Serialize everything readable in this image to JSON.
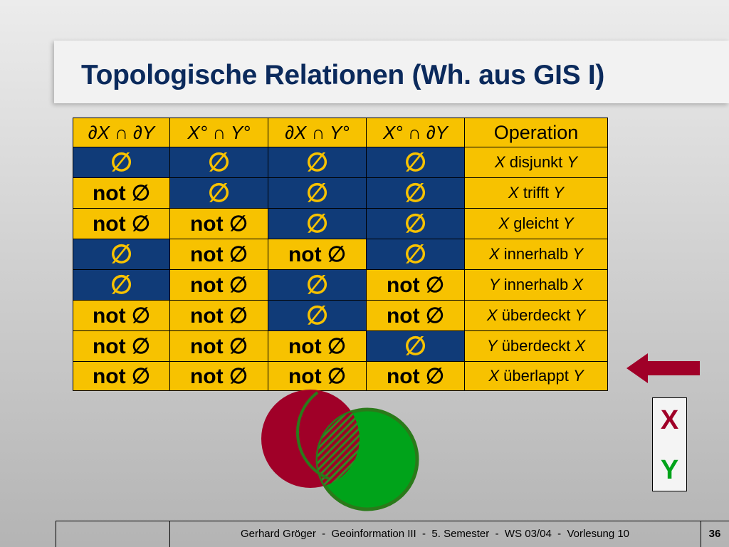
{
  "title": "Topologische Relationen (Wh. aus GIS I)",
  "table": {
    "headers": [
      "∂X ∩ ∂Y",
      "X° ∩ Y°",
      "∂X ∩ Y°",
      "X° ∩ ∂Y",
      "Operation"
    ],
    "empty_symbol": "∅",
    "not_empty_label": "not ∅",
    "rows": [
      {
        "cells": [
          "empty",
          "empty",
          "empty",
          "empty"
        ],
        "op_a": "X",
        "op_word": "disjunkt",
        "op_b": "Y"
      },
      {
        "cells": [
          "not",
          "empty",
          "empty",
          "empty"
        ],
        "op_a": "X",
        "op_word": "trifft",
        "op_b": "Y"
      },
      {
        "cells": [
          "not",
          "not",
          "empty",
          "empty"
        ],
        "op_a": "X",
        "op_word": "gleicht",
        "op_b": "Y"
      },
      {
        "cells": [
          "empty",
          "not",
          "not",
          "empty"
        ],
        "op_a": "X",
        "op_word": "innerhalb",
        "op_b": "Y"
      },
      {
        "cells": [
          "empty",
          "not",
          "empty",
          "not"
        ],
        "op_a": "Y",
        "op_word": "innerhalb",
        "op_b": "X"
      },
      {
        "cells": [
          "not",
          "not",
          "empty",
          "not"
        ],
        "op_a": "X",
        "op_word": "überdeckt",
        "op_b": "Y"
      },
      {
        "cells": [
          "not",
          "not",
          "not",
          "empty"
        ],
        "op_a": "Y",
        "op_word": "überdeckt",
        "op_b": "X"
      },
      {
        "cells": [
          "not",
          "not",
          "not",
          "not"
        ],
        "op_a": "X",
        "op_word": "überlappt",
        "op_b": "Y"
      }
    ]
  },
  "legend": {
    "x_label": "X",
    "y_label": "Y",
    "x_color": "#a00028",
    "y_color": "#00a31a"
  },
  "colors": {
    "empty_bg": "#103b78",
    "highlight_bg": "#f7c200",
    "title_color": "#0b2a5c",
    "arrow_color": "#a00028"
  },
  "footer": {
    "text": "Gerhard Gröger  -  Geoinformation III  -  5. Semester  -  WS 03/04  -  Vorlesung 10",
    "page": "36"
  }
}
